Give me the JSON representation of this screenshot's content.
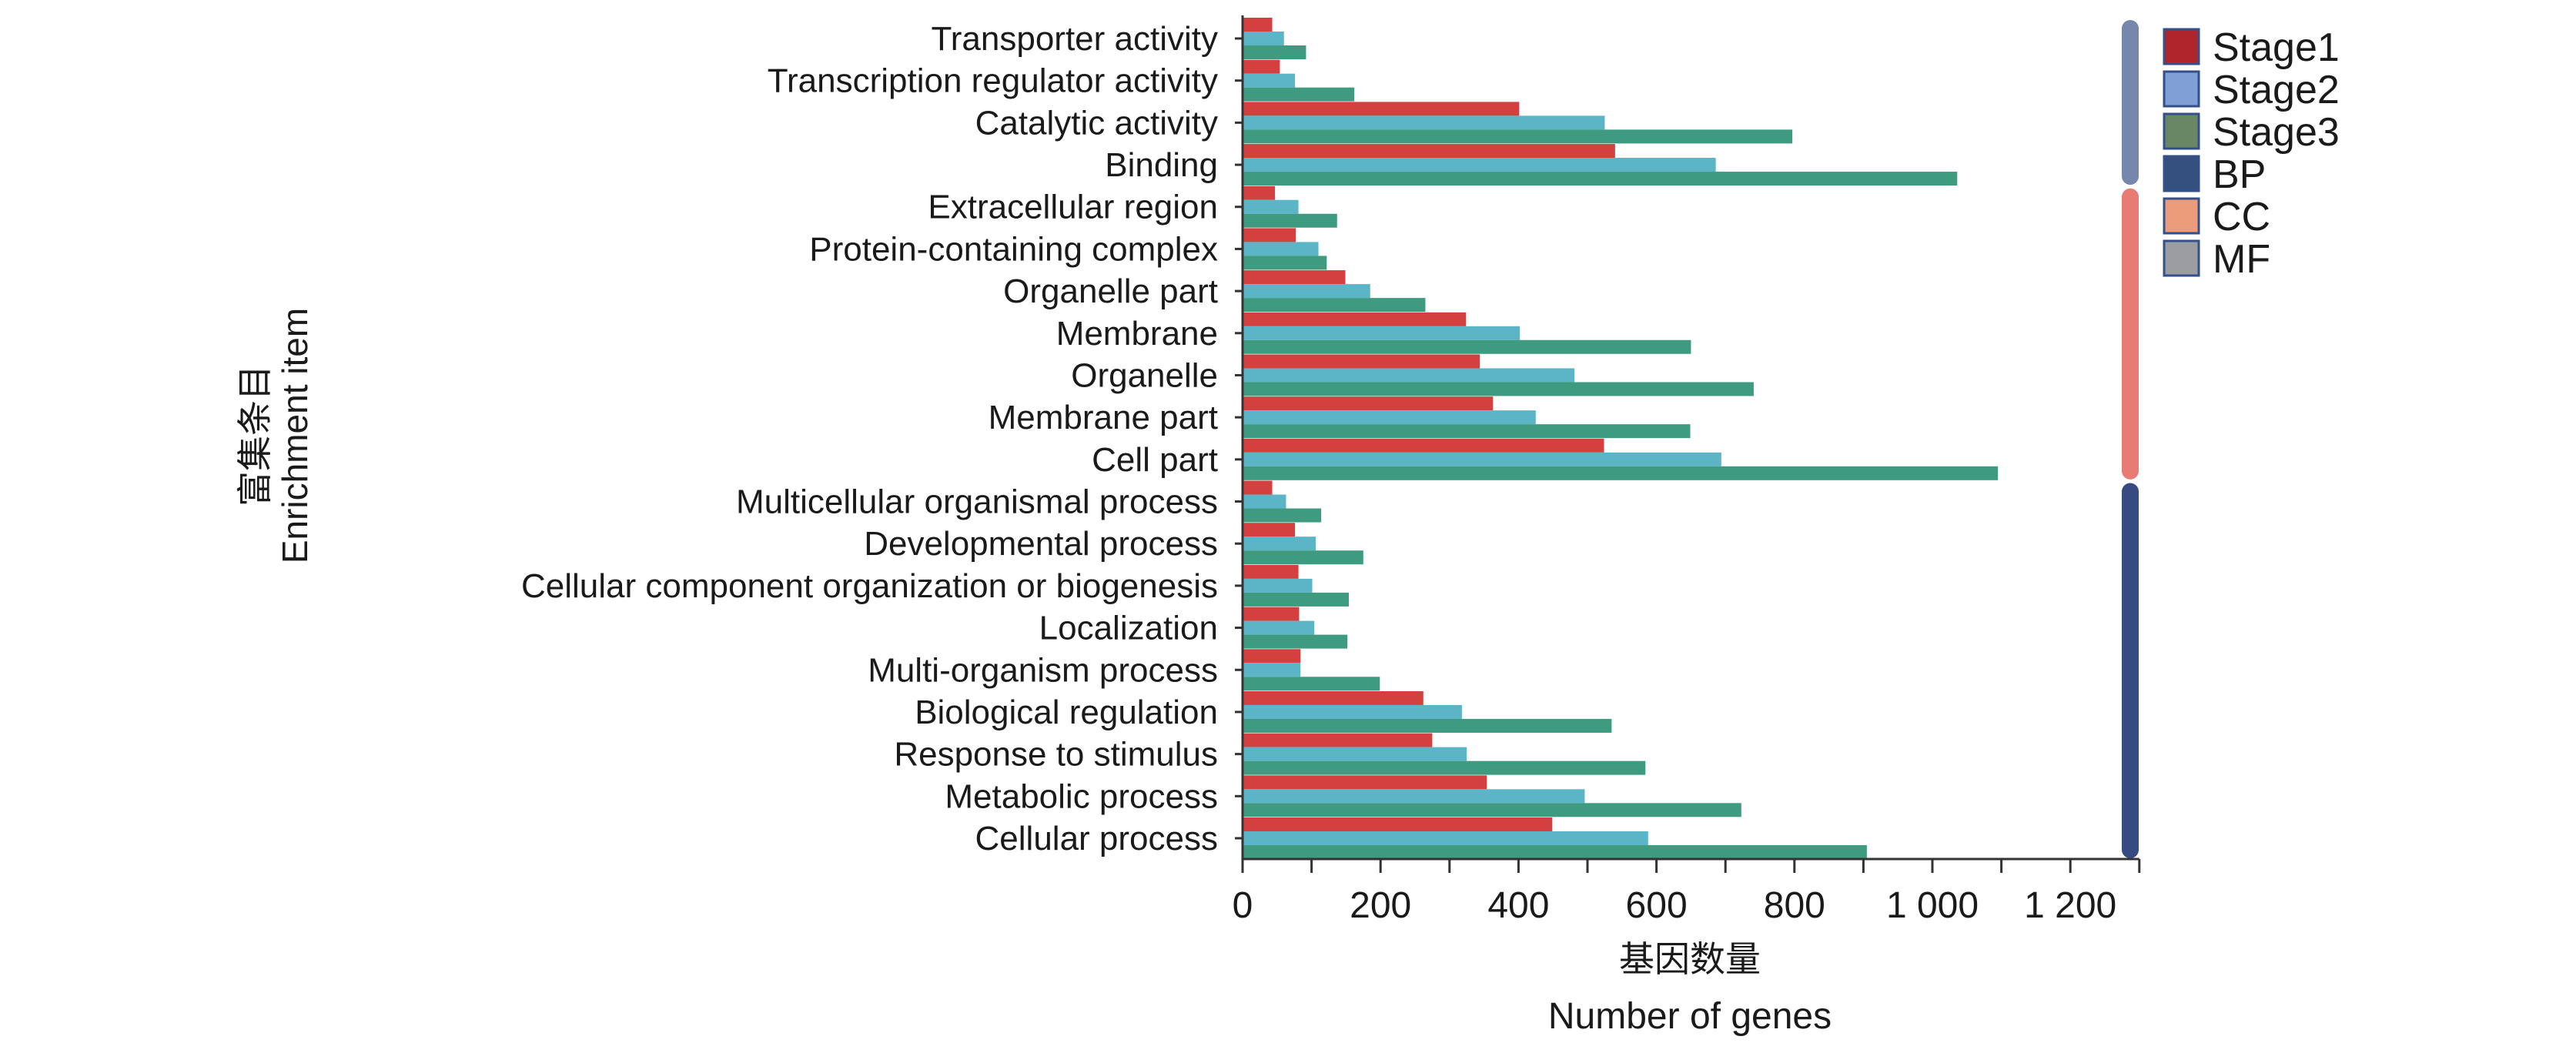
{
  "chart_data": {
    "type": "bar",
    "orientation": "horizontal",
    "ylabel_cn": "富集条目",
    "ylabel": "Enrichment item",
    "xlabel_cn": "基因数量",
    "xlabel": "Number of genes",
    "xlim": [
      0,
      1300
    ],
    "xticks": [
      0,
      200,
      400,
      600,
      800,
      1000,
      1200
    ],
    "xtick_labels": [
      "0",
      "200",
      "400",
      "600",
      "800",
      "1 000",
      "1 200"
    ],
    "grid": false,
    "legend_position": "top-right",
    "categories": [
      "Transporter activity",
      "Transcription regulator  activity",
      "Catalytic activity",
      "Binding",
      "Extracellular region",
      "Protein-containing complex",
      "Organelle part",
      "Membrane",
      "Organelle",
      "Membrane part",
      "Cell part",
      "Multicellular organismal process",
      "Developmental process",
      "Cellular component organization or biogenesis",
      "Localization",
      "Multi-organism process",
      "Biological regulation",
      "Response to stimulus",
      "Metabolic process",
      "Cellular process"
    ],
    "category_groups": [
      "MF",
      "MF",
      "MF",
      "MF",
      "CC",
      "CC",
      "CC",
      "CC",
      "CC",
      "CC",
      "CC",
      "BP",
      "BP",
      "BP",
      "BP",
      "BP",
      "BP",
      "BP",
      "BP",
      "BP"
    ],
    "series": [
      {
        "name": "Stage1",
        "color": "#d43f3f",
        "values": [
          43,
          54,
          401,
          540,
          47,
          77,
          149,
          324,
          344,
          363,
          524,
          43,
          76,
          81,
          82,
          84,
          262,
          275,
          354,
          449
        ]
      },
      {
        "name": "Stage2",
        "color": "#5bb5c6",
        "values": [
          60,
          76,
          525,
          686,
          81,
          110,
          185,
          402,
          481,
          425,
          694,
          63,
          106,
          101,
          104,
          84,
          318,
          325,
          496,
          588
        ]
      },
      {
        "name": "Stage3",
        "color": "#3f9b80",
        "values": [
          92,
          162,
          797,
          1036,
          137,
          122,
          265,
          650,
          741,
          649,
          1095,
          114,
          175,
          154,
          152,
          199,
          535,
          584,
          723,
          905
        ]
      }
    ],
    "legend": [
      {
        "label": "Stage1",
        "color": "#b0242b"
      },
      {
        "label": "Stage2",
        "color": "#7f9fd6"
      },
      {
        "label": "Stage3",
        "color": "#688762"
      },
      {
        "label": "BP",
        "color": "#34507e"
      },
      {
        "label": "CC",
        "color": "#ec9c7a"
      },
      {
        "label": "MF",
        "color": "#9c9da0"
      }
    ],
    "group_bar_colors": {
      "MF": "#7786ad",
      "CC": "#e77c74",
      "BP": "#364b81"
    }
  }
}
